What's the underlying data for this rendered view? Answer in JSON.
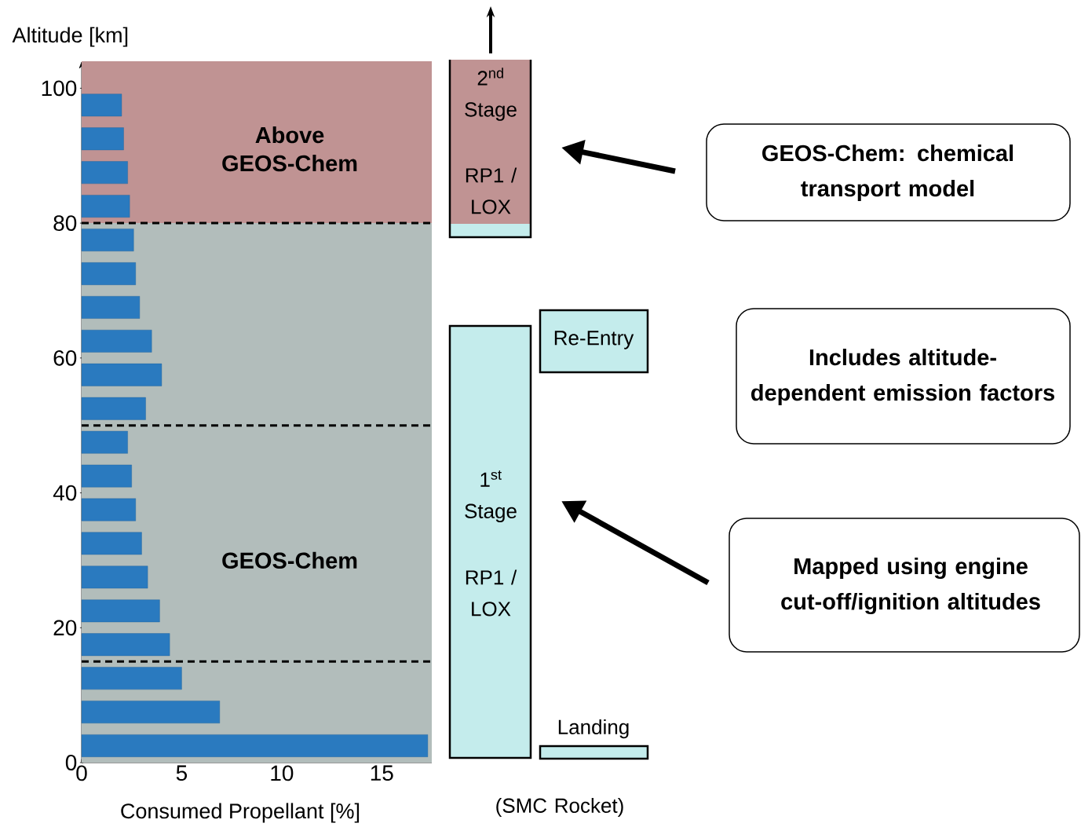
{
  "chart_data": {
    "type": "bar",
    "orientation": "horizontal",
    "xlabel": "Consumed Propellant [%]",
    "ylabel": "Altitude [km]",
    "x": [
      2.5,
      7.5,
      12.5,
      17.5,
      22.5,
      27.5,
      32.5,
      37.5,
      42.5,
      47.5,
      52.5,
      57.5,
      62.5,
      67.5,
      72.5,
      77.5,
      82.5,
      87.5,
      92.5,
      97.5
    ],
    "values": [
      17.3,
      6.9,
      5.0,
      4.4,
      3.9,
      3.3,
      3.0,
      2.7,
      2.5,
      2.3,
      3.2,
      4.0,
      3.5,
      2.9,
      2.7,
      2.6,
      2.4,
      2.3,
      2.1,
      2.0
    ],
    "color": "#2a7abf",
    "xlim": [
      0,
      17.5
    ],
    "xticks": [
      0,
      5,
      10,
      15
    ],
    "ylim": [
      0,
      104
    ],
    "yticks": [
      0,
      20,
      40,
      60,
      80,
      100
    ],
    "bands": [
      {
        "axis": "y",
        "from": 80,
        "to": 104,
        "label": "Above GEOS-Chem",
        "color": "#c09393"
      },
      {
        "axis": "y",
        "from": 0,
        "to": 80,
        "label": "GEOS-Chem",
        "color": "#b2bdbb"
      }
    ],
    "ref_lines": [
      {
        "axis": "y",
        "value": 80,
        "line_style": "dashed",
        "color": "#000000"
      },
      {
        "axis": "y",
        "value": 50,
        "line_style": "dashed",
        "color": "#000000"
      },
      {
        "axis": "y",
        "value": 15,
        "line_style": "dashed",
        "color": "#000000"
      }
    ],
    "annotations": [
      "2$^{nd}$ Stage",
      "RP1 / LOX",
      "1$^{st}$ Stage",
      "RP1 / LOX",
      "Re-Entry",
      "Landing",
      "(SMC Rocket)",
      "GEOS-Chem: chemical transport model",
      "Includes altitude-dependent emission factors",
      "Mapped using engine cut-off/ignition altitudes"
    ]
  }
}
